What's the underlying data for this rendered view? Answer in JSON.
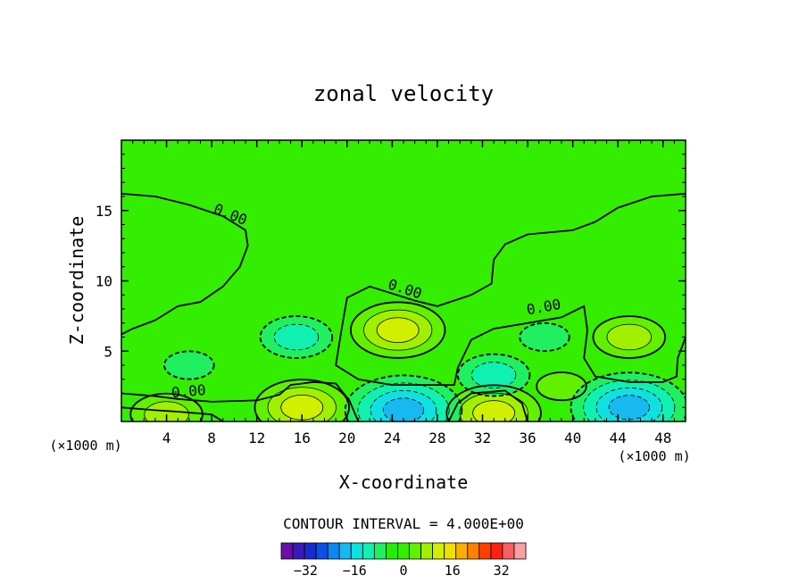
{
  "chart_data": {
    "type": "heatmap",
    "title": "zonal velocity",
    "xlabel": "X-coordinate",
    "ylabel": "Z-coordinate",
    "x_unit": "(×1000 m)",
    "y_unit": "(×1000 m)",
    "xlim": [
      0,
      50
    ],
    "ylim": [
      0,
      20
    ],
    "x_ticks": [
      4,
      8,
      12,
      16,
      20,
      24,
      28,
      32,
      36,
      40,
      44,
      48
    ],
    "y_ticks": [
      5,
      10,
      15
    ],
    "contour_interval_text": "CONTOUR INTERVAL = 4.000E+00",
    "contour_label": "0.00",
    "colorbar": {
      "levels": [
        -40,
        -36,
        -32,
        -28,
        -24,
        -20,
        -16,
        -12,
        -8,
        -4,
        0,
        4,
        8,
        12,
        16,
        20,
        24,
        28,
        32,
        36,
        40
      ],
      "tick_values": [
        -32,
        -16,
        0,
        16,
        32
      ],
      "tick_labels": [
        "−32",
        "−16",
        "0",
        "16",
        "32"
      ],
      "colors": [
        "#6a0fa8",
        "#3a1ab8",
        "#1a2ad0",
        "#0a50e8",
        "#0a88f0",
        "#18b8f0",
        "#10e0e0",
        "#10f0b0",
        "#20f060",
        "#20f000",
        "#30f000",
        "#60f000",
        "#a0f000",
        "#d0f000",
        "#f0e000",
        "#f8b000",
        "#ff8000",
        "#ff4000",
        "#ff2010",
        "#f86060",
        "#f8a0a0"
      ]
    },
    "background_color": "#33ee00",
    "features": [
      {
        "kind": "max",
        "x": 24.5,
        "z": 6.5,
        "value": 12
      },
      {
        "kind": "max",
        "x": 45,
        "z": 6.0,
        "value": 8
      },
      {
        "kind": "max",
        "x": 16,
        "z": 1.0,
        "value": 12
      },
      {
        "kind": "max",
        "x": 33,
        "z": 0.6,
        "value": 12
      },
      {
        "kind": "max",
        "x": 4,
        "z": 0.5,
        "value": 8
      },
      {
        "kind": "max",
        "x": 39,
        "z": 2.5,
        "value": 4
      },
      {
        "kind": "min",
        "x": 15.5,
        "z": 6.0,
        "value": -8
      },
      {
        "kind": "min",
        "x": 25,
        "z": 0.8,
        "value": -16
      },
      {
        "kind": "min",
        "x": 45,
        "z": 1.0,
        "value": -16
      },
      {
        "kind": "min",
        "x": 33,
        "z": 3.3,
        "value": -8
      },
      {
        "kind": "min",
        "x": 6,
        "z": 4.0,
        "value": -4
      },
      {
        "kind": "min",
        "x": 37.5,
        "z": 6.0,
        "value": -4
      }
    ]
  }
}
